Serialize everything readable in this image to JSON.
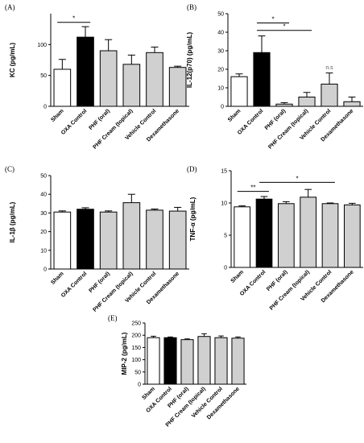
{
  "chart_data": [
    {
      "type": "bar",
      "panel_label": "(A)",
      "ylabel": "KC (pg/mL)",
      "ylim": [
        0,
        150
      ],
      "yticks": [
        0,
        50,
        100
      ],
      "categories": [
        "Sham",
        "OXA Control",
        "PHF (oral)",
        "PHF Cream (topical)",
        "Vehicle Control",
        "Dexamethasone"
      ],
      "values": [
        60,
        112,
        90,
        68,
        87,
        63
      ],
      "errors": [
        16,
        17,
        18,
        15,
        9,
        2
      ],
      "colors": [
        "#ffffff",
        "#000000",
        "#d0d0d0",
        "#d0d0d0",
        "#d0d0d0",
        "#d0d0d0"
      ],
      "annotations": [
        {
          "from": 0,
          "to": 1,
          "y": 136,
          "text": "*"
        }
      ]
    },
    {
      "type": "bar",
      "panel_label": "(B)",
      "ylabel": "IL-12(p70) (pg/mL)",
      "ylim": [
        0,
        50
      ],
      "yticks": [
        0,
        10,
        20,
        30,
        40,
        50
      ],
      "categories": [
        "Sham",
        "OXA Control",
        "PHF (oral)",
        "PHF Cream (topical)",
        "Vehicle Control",
        "Dexamethasone"
      ],
      "values": [
        16,
        29,
        1.2,
        5,
        12,
        2.5
      ],
      "errors": [
        1.5,
        9,
        0.8,
        2.5,
        6,
        2.5
      ],
      "colors": [
        "#ffffff",
        "#000000",
        "#d0d0d0",
        "#d0d0d0",
        "#d0d0d0",
        "#d0d0d0"
      ],
      "annotations": [
        {
          "from": 1,
          "to": 2,
          "y": 45,
          "text": "*"
        },
        {
          "from": 1,
          "to": 3,
          "y": 41,
          "text": "*"
        },
        {
          "at": 4,
          "y": 20,
          "text": "n.s"
        }
      ]
    },
    {
      "type": "bar",
      "panel_label": "(C)",
      "ylabel": "IL-1β (pg/mL)",
      "ylim": [
        0,
        50
      ],
      "yticks": [
        0,
        10,
        20,
        30,
        40,
        50
      ],
      "categories": [
        "Sham",
        "OXA Control",
        "PHF (oral)",
        "PHF Cream (topical)",
        "Vehicle Control",
        "Dexamethasone"
      ],
      "values": [
        30.5,
        32,
        30.5,
        35.5,
        31.5,
        31
      ],
      "errors": [
        0.6,
        0.8,
        0.6,
        4.5,
        0.6,
        2
      ],
      "colors": [
        "#ffffff",
        "#000000",
        "#d0d0d0",
        "#d0d0d0",
        "#d0d0d0",
        "#d0d0d0"
      ],
      "annotations": []
    },
    {
      "type": "bar",
      "panel_label": "(D)",
      "ylabel": "TNF-α (pg/mL)",
      "ylim": [
        0,
        15
      ],
      "yticks": [
        0,
        5,
        10,
        15
      ],
      "categories": [
        "Sham",
        "OXA Control",
        "PHF (oral)",
        "PHF Cream (topical)",
        "Vehicle Control",
        "Dexamethasone"
      ],
      "values": [
        9.4,
        10.6,
        9.9,
        10.9,
        9.9,
        9.7
      ],
      "errors": [
        0.15,
        0.4,
        0.3,
        1.2,
        0.1,
        0.25
      ],
      "colors": [
        "#ffffff",
        "#000000",
        "#d0d0d0",
        "#d0d0d0",
        "#d0d0d0",
        "#d0d0d0"
      ],
      "annotations": [
        {
          "from": 0,
          "to": 1,
          "y": 11.8,
          "text": "**"
        },
        {
          "from": 1,
          "to": 4,
          "y": 13.2,
          "text": "*"
        }
      ]
    },
    {
      "type": "bar",
      "panel_label": "(E)",
      "ylabel": "MIP-2 (pg/mL)",
      "ylim": [
        0,
        250
      ],
      "yticks": [
        0,
        50,
        100,
        150,
        200,
        250
      ],
      "categories": [
        "Sham",
        "OXA Control",
        "PHF (oral)",
        "PHF Cream (topical)",
        "Vehicle Control",
        "Dexamethasone"
      ],
      "values": [
        190,
        190,
        182,
        195,
        190,
        188
      ],
      "errors": [
        6,
        3,
        3,
        11,
        7,
        5
      ],
      "colors": [
        "#ffffff",
        "#000000",
        "#d0d0d0",
        "#d0d0d0",
        "#d0d0d0",
        "#d0d0d0"
      ],
      "annotations": []
    }
  ]
}
